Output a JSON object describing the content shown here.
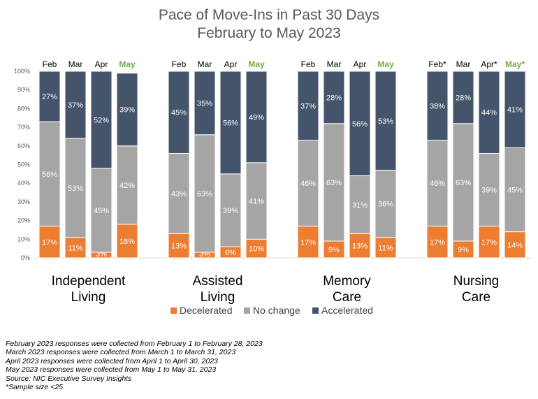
{
  "title": "Pace of Move-Ins in Past 30 Days",
  "subtitle": "February to May 2023",
  "colors": {
    "decelerated": "#ED7D31",
    "no_change": "#A5A5A5",
    "accelerated": "#44546A",
    "may_label": "#70AD47"
  },
  "legend": [
    {
      "name": "Decelerated",
      "color": "#ED7D31"
    },
    {
      "name": "No change",
      "color": "#A5A5A5"
    },
    {
      "name": "Accelerated",
      "color": "#44546A"
    }
  ],
  "chart_data": {
    "type": "bar",
    "stacked": true,
    "ylim": [
      0,
      100
    ],
    "yticks": [
      "0%",
      "10%",
      "20%",
      "30%",
      "40%",
      "50%",
      "60%",
      "70%",
      "80%",
      "90%",
      "100%"
    ],
    "grid": false,
    "legend_position": "bottom",
    "groups": [
      {
        "name_lines": [
          "Independent",
          "Living"
        ],
        "bars": [
          {
            "label": "Feb",
            "decelerated": 17,
            "no_change": 56,
            "accelerated": 27
          },
          {
            "label": "Mar",
            "decelerated": 11,
            "no_change": 53,
            "accelerated": 37
          },
          {
            "label": "Apr",
            "decelerated": 3,
            "no_change": 45,
            "accelerated": 52
          },
          {
            "label": "May",
            "decelerated": 18,
            "no_change": 42,
            "accelerated": 39
          }
        ]
      },
      {
        "name_lines": [
          "Assisted",
          "Living"
        ],
        "bars": [
          {
            "label": "Feb",
            "decelerated": 13,
            "no_change": 43,
            "accelerated": 45
          },
          {
            "label": "Mar",
            "decelerated": 3,
            "no_change": 63,
            "accelerated": 35
          },
          {
            "label": "Apr",
            "decelerated": 6,
            "no_change": 39,
            "accelerated": 56
          },
          {
            "label": "May",
            "decelerated": 10,
            "no_change": 41,
            "accelerated": 49
          }
        ]
      },
      {
        "name_lines": [
          "Memory",
          "Care"
        ],
        "bars": [
          {
            "label": "Feb",
            "decelerated": 17,
            "no_change": 46,
            "accelerated": 37
          },
          {
            "label": "Mar",
            "decelerated": 9,
            "no_change": 63,
            "accelerated": 28
          },
          {
            "label": "Apr",
            "decelerated": 13,
            "no_change": 31,
            "accelerated": 56
          },
          {
            "label": "May",
            "decelerated": 11,
            "no_change": 36,
            "accelerated": 53
          }
        ]
      },
      {
        "name_lines": [
          "Nursing",
          "Care"
        ],
        "bars": [
          {
            "label": "Feb*",
            "decelerated": 17,
            "no_change": 46,
            "accelerated": 38
          },
          {
            "label": "Mar",
            "decelerated": 9,
            "no_change": 63,
            "accelerated": 28
          },
          {
            "label": "Apr*",
            "decelerated": 17,
            "no_change": 39,
            "accelerated": 44
          },
          {
            "label": "May*",
            "decelerated": 14,
            "no_change": 45,
            "accelerated": 41
          }
        ]
      }
    ]
  },
  "notes": [
    "February 2023 responses were collected from February 1 to February 28, 2023",
    "March 2023 responses were collected from March 1 to March 31, 2023",
    "April 2023 responses were collected from April 1 to April 30, 2023",
    "May 2023 responses were collected from May 1 to May 31, 2023",
    "Source: NIC Executive Survey Insights",
    "*Sample size <25"
  ]
}
